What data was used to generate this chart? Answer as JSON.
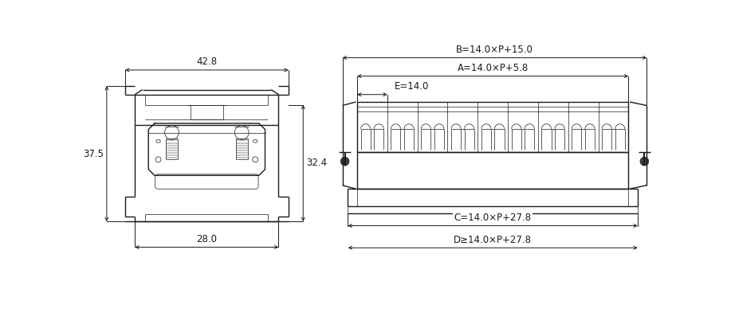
{
  "bg_color": "#ffffff",
  "line_color": "#1a1a1a",
  "fig_width": 9.17,
  "fig_height": 4.12,
  "annotations": {
    "label_428": "42.8",
    "label_375": "37.5",
    "label_324": "32.4",
    "label_280": "28.0",
    "label_B": "B=14.0×P+15.0",
    "label_A": "A=14.0×P+5.8",
    "label_E": "E=14.0",
    "label_C": "C=14.0×P+27.8",
    "label_D": "D≥14.0×P+27.8"
  }
}
